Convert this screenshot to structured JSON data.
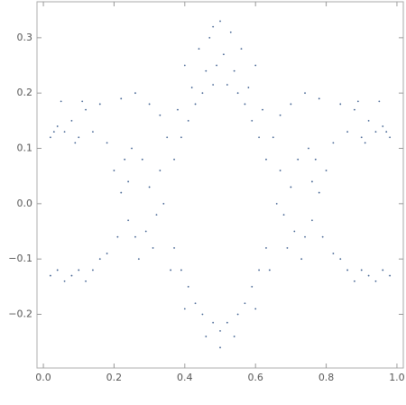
{
  "chart_data": {
    "type": "scatter",
    "color": "#3e5f8f",
    "xlim": [
      -0.018,
      1.018
    ],
    "ylim": [
      -0.297,
      0.365
    ],
    "xticks": [
      {
        "value": 0,
        "label": "0.0"
      },
      0.2,
      0.4,
      0.6,
      0.8,
      {
        "value": 1,
        "label": "1.0"
      }
    ],
    "yticks": [
      {
        "value": -0.2,
        "label": "−0.2"
      },
      {
        "value": -0.1,
        "label": "−0.1"
      },
      {
        "value": 0,
        "label": "0.0"
      },
      0.1,
      0.2,
      0.3
    ],
    "x": [
      0.02,
      0.04,
      0.06,
      0.08,
      0.1,
      0.12,
      0.14,
      0.16,
      0.18,
      0.05,
      0.11,
      0.03,
      0.09,
      0.98,
      0.96,
      0.94,
      0.92,
      0.9,
      0.88,
      0.86,
      0.84,
      0.82,
      0.95,
      0.89,
      0.97,
      0.91,
      0.02,
      0.04,
      0.06,
      0.08,
      0.1,
      0.12,
      0.14,
      0.16,
      0.18,
      0.98,
      0.96,
      0.94,
      0.92,
      0.9,
      0.88,
      0.86,
      0.84,
      0.82,
      0.2,
      0.22,
      0.24,
      0.26,
      0.28,
      0.3,
      0.32,
      0.25,
      0.27,
      0.23,
      0.29,
      0.33,
      0.21,
      0.31,
      0.34,
      0.24,
      0.8,
      0.78,
      0.76,
      0.74,
      0.72,
      0.7,
      0.68,
      0.75,
      0.73,
      0.77,
      0.71,
      0.67,
      0.79,
      0.69,
      0.66,
      0.76,
      0.37,
      0.39,
      0.41,
      0.43,
      0.45,
      0.48,
      0.35,
      0.38,
      0.42,
      0.46,
      0.63,
      0.61,
      0.59,
      0.57,
      0.55,
      0.52,
      0.65,
      0.62,
      0.58,
      0.54,
      0.37,
      0.39,
      0.41,
      0.43,
      0.45,
      0.48,
      0.36,
      0.4,
      0.46,
      0.5,
      0.63,
      0.61,
      0.59,
      0.57,
      0.55,
      0.52,
      0.64,
      0.6,
      0.54,
      0.5,
      0.47,
      0.5,
      0.53,
      0.49,
      0.51,
      0.44,
      0.56,
      0.48,
      0.22,
      0.26,
      0.3,
      0.33,
      0.4,
      0.78,
      0.74,
      0.7,
      0.67,
      0.6
    ],
    "values": [
      0.12,
      0.14,
      0.13,
      0.15,
      0.12,
      0.17,
      0.13,
      0.18,
      0.11,
      0.185,
      0.185,
      0.13,
      0.11,
      0.12,
      0.14,
      0.13,
      0.15,
      0.12,
      0.17,
      0.13,
      0.18,
      0.11,
      0.185,
      0.185,
      0.13,
      0.11,
      -0.13,
      -0.12,
      -0.14,
      -0.13,
      -0.12,
      -0.14,
      -0.12,
      -0.1,
      -0.09,
      -0.13,
      -0.12,
      -0.14,
      -0.13,
      -0.12,
      -0.14,
      -0.12,
      -0.1,
      -0.09,
      0.06,
      0.02,
      -0.03,
      -0.06,
      0.08,
      0.03,
      -0.02,
      0.1,
      -0.1,
      0.08,
      -0.05,
      0.06,
      -0.06,
      -0.08,
      0.0,
      0.04,
      0.06,
      0.02,
      -0.03,
      -0.06,
      0.08,
      0.03,
      -0.02,
      0.1,
      -0.1,
      0.08,
      -0.05,
      0.06,
      -0.06,
      -0.08,
      0.0,
      0.04,
      0.08,
      0.12,
      0.15,
      0.18,
      0.2,
      0.215,
      0.12,
      0.17,
      0.21,
      0.24,
      0.08,
      0.12,
      0.15,
      0.18,
      0.2,
      0.215,
      0.12,
      0.17,
      0.21,
      0.24,
      -0.08,
      -0.12,
      -0.15,
      -0.18,
      -0.2,
      -0.215,
      -0.12,
      -0.19,
      -0.24,
      -0.26,
      -0.08,
      -0.12,
      -0.15,
      -0.18,
      -0.2,
      -0.215,
      -0.12,
      -0.19,
      -0.24,
      -0.23,
      0.3,
      0.33,
      0.31,
      0.25,
      0.27,
      0.28,
      0.28,
      0.32,
      0.19,
      0.2,
      0.18,
      0.16,
      0.25,
      0.19,
      0.2,
      0.18,
      0.16,
      0.25
    ]
  }
}
